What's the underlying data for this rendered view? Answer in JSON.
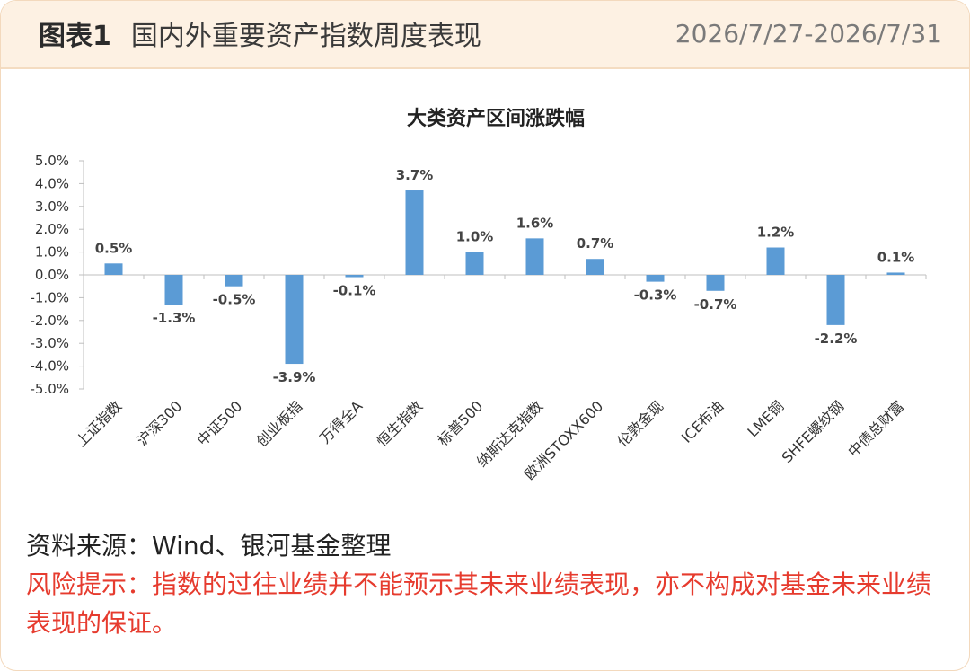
{
  "header": {
    "figure_label": "图表1",
    "title": "国内外重要资产指数周度表现",
    "date_range": "2026/7/27-2026/7/31"
  },
  "chart_data": {
    "type": "bar",
    "title": "大类资产区间涨跌幅",
    "categories": [
      "上证指数",
      "沪深300",
      "中证500",
      "创业板指",
      "万得全A",
      "恒生指数",
      "标普500",
      "纳斯达克指数",
      "欧洲STOXX600",
      "伦敦金现",
      "ICE布油",
      "LME铜",
      "SHFE螺纹钢",
      "中债总财富"
    ],
    "series": [
      {
        "values": [
          0.5,
          -1.3,
          -0.5,
          -3.9,
          -0.1,
          3.7,
          1.0,
          1.6,
          0.7,
          -0.3,
          -0.7,
          1.2,
          -2.2,
          0.1
        ]
      }
    ],
    "data_labels": [
      "0.5%",
      "-1.3%",
      "-0.5%",
      "-3.9%",
      "-0.1%",
      "3.7%",
      "1.0%",
      "1.6%",
      "0.7%",
      "-0.3%",
      "-0.7%",
      "1.2%",
      "-2.2%",
      "0.1%"
    ],
    "ylim": [
      -5,
      5
    ],
    "yticks": [
      5,
      4,
      3,
      2,
      1,
      0,
      -1,
      -2,
      -3,
      -4,
      -5
    ],
    "ytick_labels": [
      "5.0%",
      "4.0%",
      "3.0%",
      "2.0%",
      "1.0%",
      "0.0%",
      "-1.0%",
      "-2.0%",
      "-3.0%",
      "-4.0%",
      "-5.0%"
    ],
    "xlabel": "",
    "ylabel": "",
    "grid": false,
    "legend": "none",
    "bar_color": "#5b9bd5"
  },
  "footer": {
    "source": "资料来源：Wind、银河基金整理",
    "risk_note": "风险提示：指数的过往业绩并不能预示其未来业绩表现，亦不构成对基金未来业绩表现的保证。"
  },
  "colors": {
    "header_bg": "#fdf1e3",
    "risk_text": "#e63b2e",
    "bar": "#5b9bd5"
  }
}
